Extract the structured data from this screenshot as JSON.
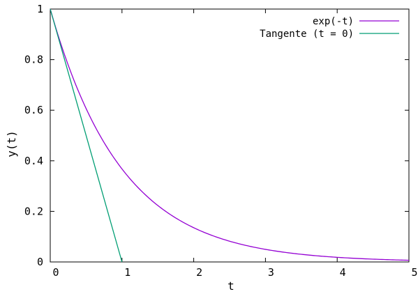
{
  "chart_data": {
    "type": "line",
    "title": "",
    "xlabel": "t",
    "ylabel": "y(t)",
    "xlim": [
      0,
      5
    ],
    "ylim": [
      0,
      1
    ],
    "grid": false,
    "legend_position": "top-right",
    "x_ticks": [
      0,
      1,
      2,
      3,
      4,
      5
    ],
    "x_tick_labels": [
      "0",
      "1",
      "2",
      "3",
      "4",
      "5"
    ],
    "y_ticks": [
      0,
      0.2,
      0.4,
      0.6,
      0.8,
      1
    ],
    "y_tick_labels": [
      "0",
      "0.2",
      "0.4",
      "0.6",
      "0.8",
      "1"
    ],
    "series": [
      {
        "name": "exp(-t)",
        "color": "#9400d3",
        "x": [
          0,
          0.25,
          0.5,
          0.75,
          1,
          1.25,
          1.5,
          1.75,
          2,
          2.25,
          2.5,
          2.75,
          3,
          3.25,
          3.5,
          3.75,
          4,
          4.25,
          4.5,
          4.75,
          5
        ],
        "y": [
          1,
          0.7788,
          0.6065,
          0.4724,
          0.3679,
          0.2865,
          0.2231,
          0.1738,
          0.1353,
          0.1054,
          0.0821,
          0.0639,
          0.0498,
          0.0388,
          0.0302,
          0.0235,
          0.0183,
          0.0143,
          0.0111,
          0.0087,
          0.0067
        ]
      },
      {
        "name": "Tangente (t = 0)",
        "color": "#009e73",
        "x": [
          0,
          1
        ],
        "y": [
          1,
          0
        ]
      }
    ]
  }
}
